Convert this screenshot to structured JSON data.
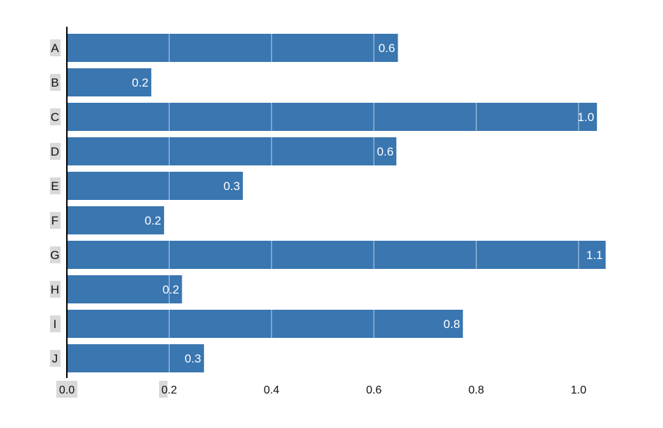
{
  "chart_data": {
    "type": "bar",
    "orientation": "horizontal",
    "categories": [
      "A",
      "B",
      "C",
      "D",
      "E",
      "F",
      "G",
      "H",
      "I",
      "J"
    ],
    "values": [
      0.647,
      0.165,
      1.036,
      0.644,
      0.344,
      0.19,
      1.053,
      0.225,
      0.774,
      0.268
    ],
    "data_labels": [
      "0.6",
      "0.2",
      "1.0",
      "0.6",
      "0.3",
      "0.2",
      "1.1",
      "0.2",
      "0.8",
      "0.3"
    ],
    "x_ticks": [
      "0.0",
      "0.2",
      "0.4",
      "0.6",
      "0.8",
      "1.0"
    ],
    "xlim": [
      0,
      1.06
    ],
    "grid": true,
    "bar_color": "#3a76b0",
    "grid_color": "#c8d6e6",
    "highlight_color": "#d9d9d9"
  }
}
